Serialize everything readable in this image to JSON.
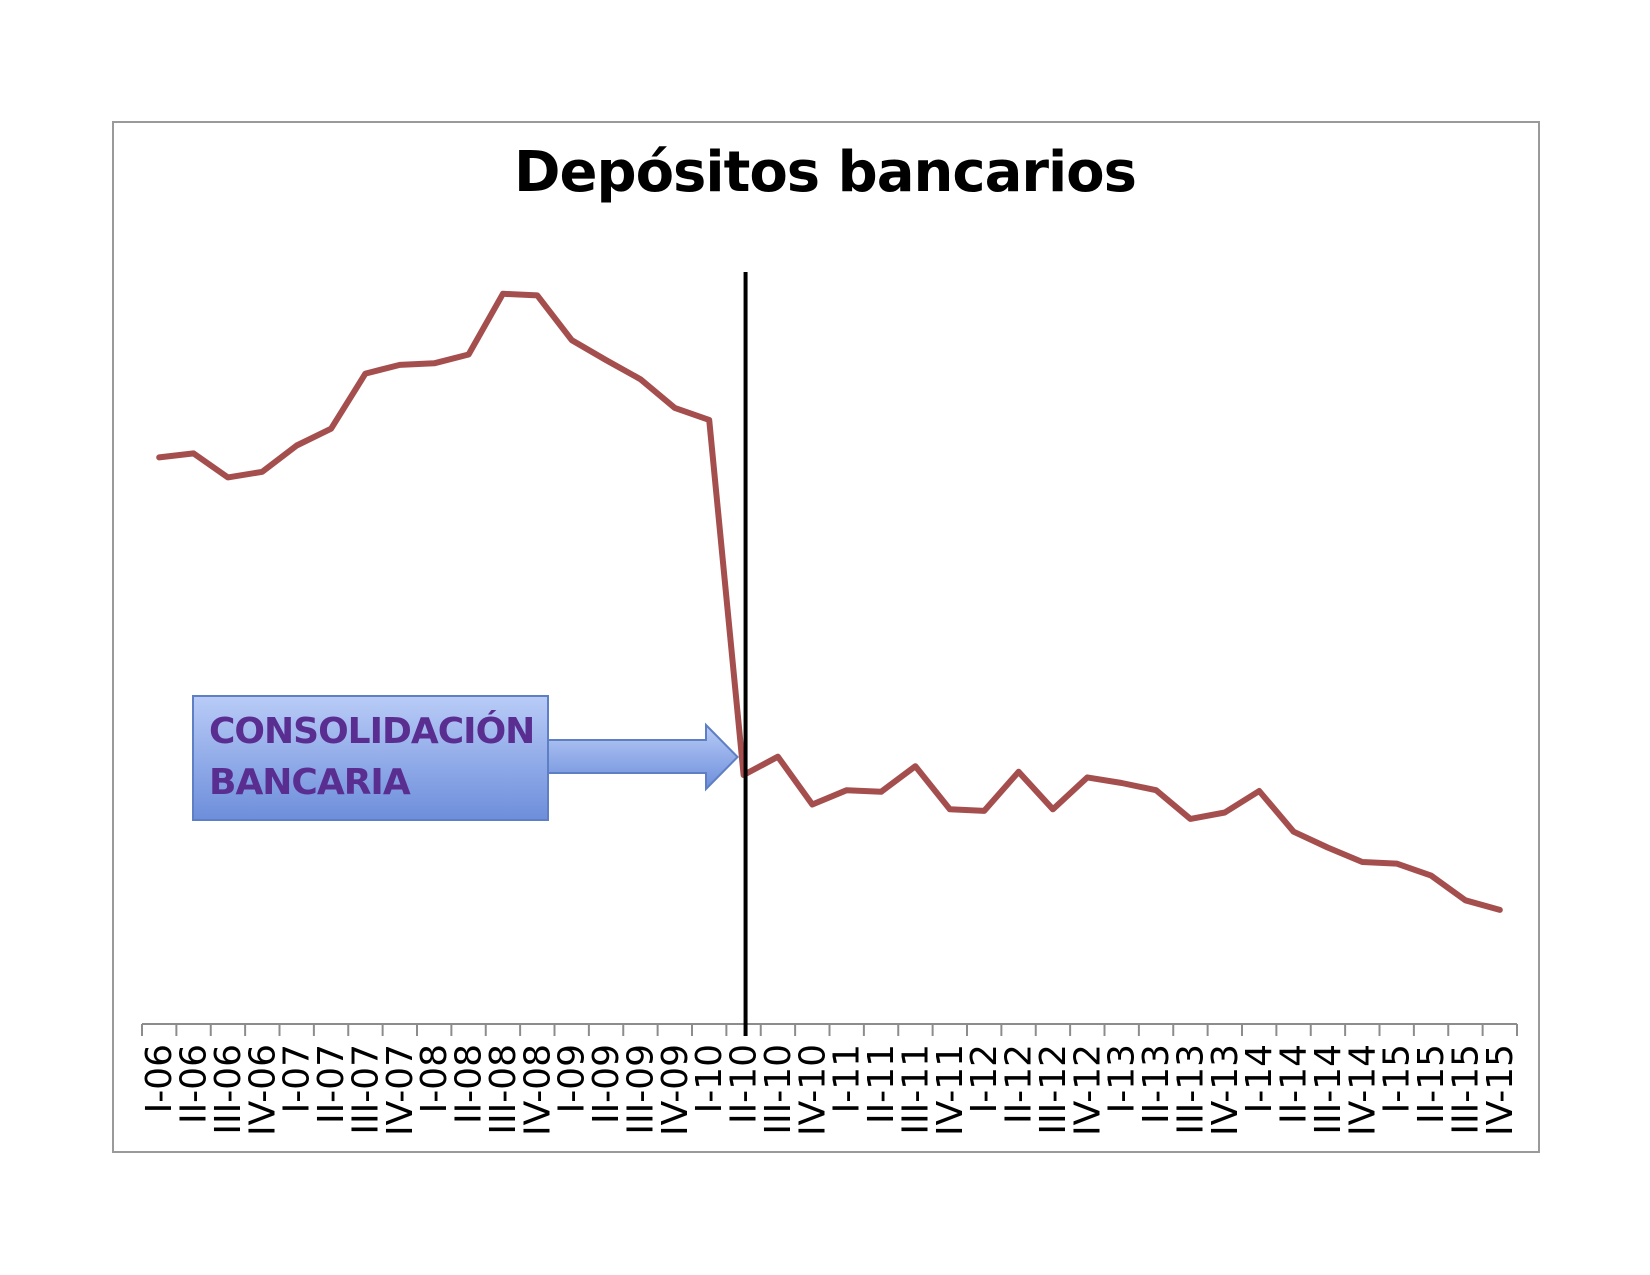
{
  "chart_data": {
    "type": "line",
    "title": "Depósitos bancarios",
    "xlabel": "",
    "ylabel": "",
    "grid": false,
    "legend": "none",
    "categories": [
      "I-06",
      "II-06",
      "III-06",
      "IV-06",
      "I-07",
      "II-07",
      "III-07",
      "IV-07",
      "I-08",
      "II-08",
      "III-08",
      "IV-08",
      "I-09",
      "II-09",
      "III-09",
      "IV-09",
      "I-10",
      "II-10",
      "III-10",
      "IV-10",
      "I-11",
      "II-11",
      "III-11",
      "IV-11",
      "I-12",
      "II-12",
      "III-12",
      "IV-12",
      "I-13",
      "II-13",
      "III-13",
      "IV-13",
      "I-14",
      "II-14",
      "III-14",
      "IV-14",
      "I-15",
      "II-15",
      "III-15",
      "IV-15"
    ],
    "ylim": [
      0,
      100
    ],
    "series": [
      {
        "values": [
          71,
          71.5,
          68.5,
          69.2,
          72.5,
          74.6,
          81.5,
          82.6,
          82.8,
          83.9,
          91.5,
          91.3,
          85.7,
          83.2,
          80.8,
          77.2,
          75.7,
          31.2,
          33.5,
          27.5,
          29.3,
          29.1,
          32.3,
          26.9,
          26.7,
          31.6,
          26.9,
          30.9,
          30.2,
          29.3,
          25.7,
          26.5,
          29.2,
          24.1,
          22.1,
          20.3,
          20.1,
          18.6,
          15.5,
          14.3
        ],
        "color": "#a54e4e"
      }
    ],
    "annotation": {
      "text_lines": [
        "CONSOLIDACIÓN",
        "BANCARIA"
      ],
      "marker_category": "II-10",
      "box_color": "#7f9fe0",
      "text_color": "#5a2d91",
      "line_color": "#000000"
    }
  }
}
